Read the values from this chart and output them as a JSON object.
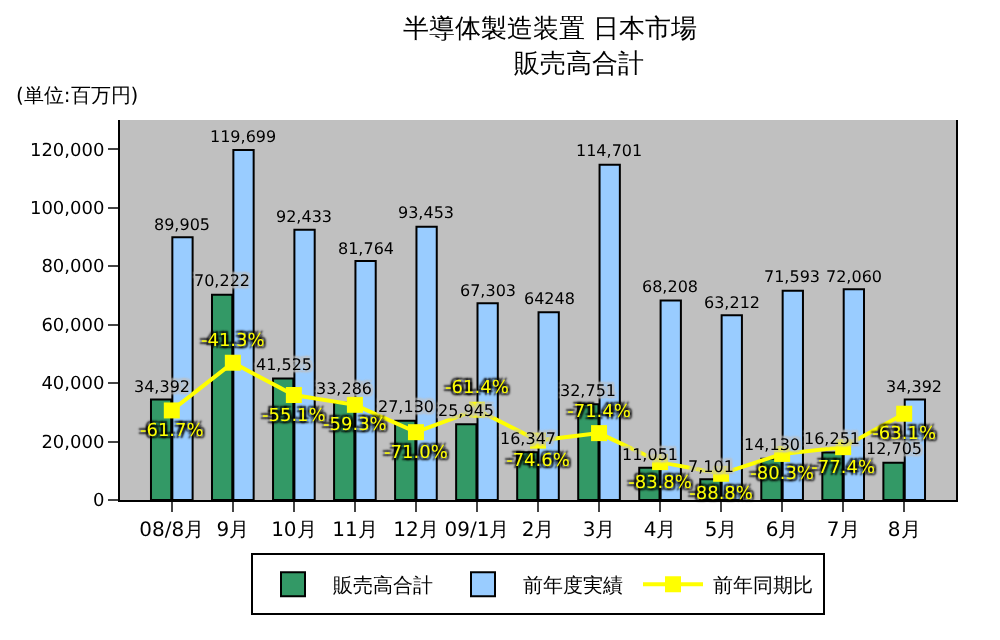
{
  "chart_data": {
    "type": "bar",
    "title": "半導体製造装置 日本市場",
    "subtitle": "販売高合計",
    "annotations": [
      "(単位:百万円)"
    ],
    "categories": [
      "08/8月",
      "9月",
      "10月",
      "11月",
      "12月",
      "09/1月",
      "2月",
      "3月",
      "4月",
      "5月",
      "6月",
      "7月",
      "8月"
    ],
    "series": [
      {
        "name": "販売高合計",
        "color": "#339966",
        "values": [
          34392,
          70222,
          41525,
          33286,
          27130,
          25945,
          16347,
          32751,
          11051,
          7101,
          14130,
          16251,
          12705
        ],
        "value_labels": [
          "34,392",
          "70,222",
          "41,525",
          "33,286",
          "27,130",
          "25,945",
          "16,347",
          "32,751",
          "11,051",
          "7,101",
          "14,130",
          "16,251",
          "12,705"
        ]
      },
      {
        "name": "前年度実績",
        "color": "#99ccff",
        "values": [
          89905,
          119699,
          92433,
          81764,
          93453,
          67303,
          64248,
          114701,
          68208,
          63212,
          71593,
          72060,
          34392
        ],
        "value_labels": [
          "89,905",
          "119,699",
          "92,433",
          "81,764",
          "93,453",
          "67,303",
          "64248",
          "114,701",
          "68,208",
          "63,212",
          "71,593",
          "72,060",
          "34,392"
        ]
      },
      {
        "name": "前年同期比",
        "type": "line",
        "axis": "y2",
        "color": "#ffff00",
        "values": [
          -61.7,
          -41.3,
          -55.1,
          -59.3,
          -71.0,
          -61.4,
          -74.6,
          -71.4,
          -83.8,
          -88.8,
          -80.3,
          -77.4,
          -63.1
        ],
        "value_labels": [
          "-61.7%",
          "-41.3%",
          "-55.1%",
          "-59.3%",
          "-71.0%",
          "-61.4%",
          "-74.6%",
          "-71.4%",
          "-83.8%",
          "-88.8%",
          "-80.3%",
          "-77.4%",
          "-63.1%"
        ]
      }
    ],
    "ylim": [
      0,
      130000
    ],
    "yticks": [
      {
        "value": 0,
        "label": "0"
      },
      {
        "value": 20000,
        "label": "20,000"
      },
      {
        "value": 40000,
        "label": "40,000"
      },
      {
        "value": 60000,
        "label": "60,000"
      },
      {
        "value": 80000,
        "label": "80,000"
      },
      {
        "value": 100000,
        "label": "100,000"
      },
      {
        "value": 120000,
        "label": "120,000"
      }
    ],
    "y2lim": [
      -100,
      62.5
    ],
    "tick_labels": "x",
    "marker": "square",
    "legend": "bottom",
    "grid": false
  }
}
